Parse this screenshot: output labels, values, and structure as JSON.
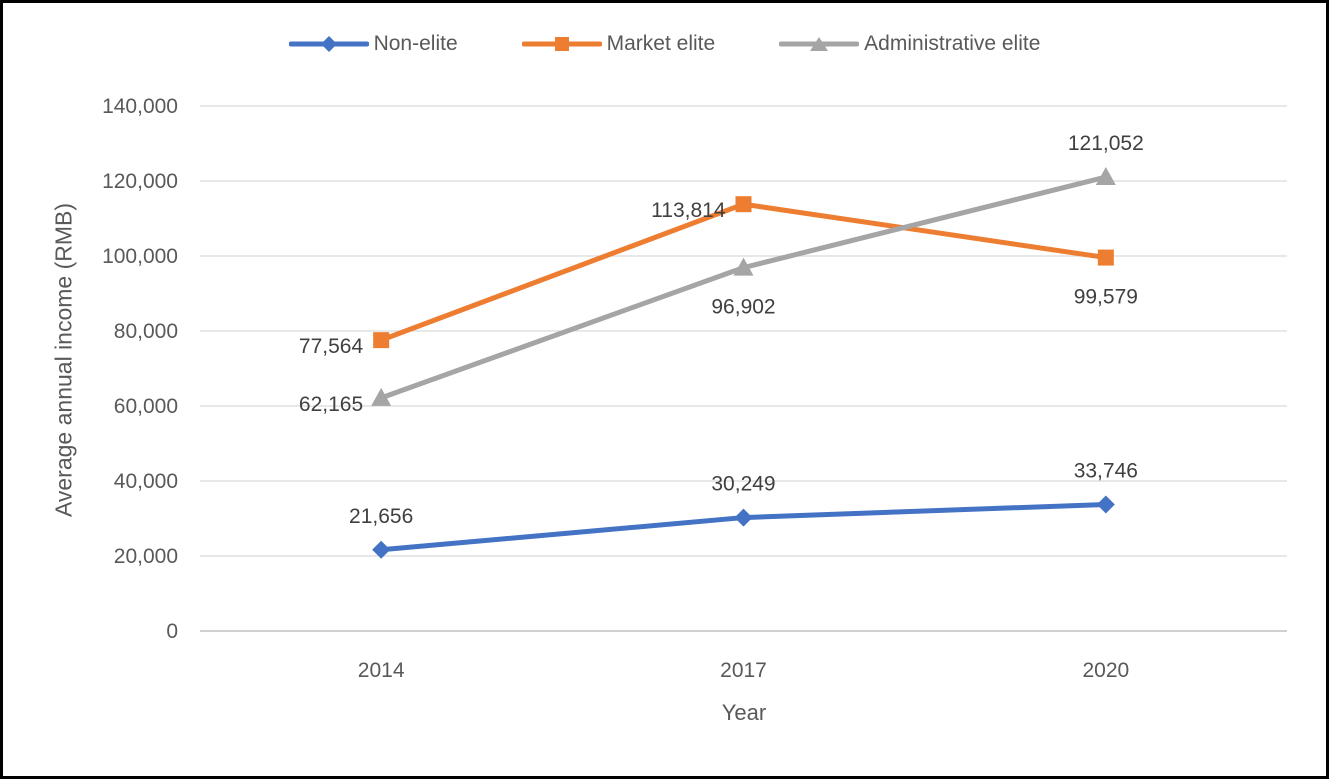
{
  "chart_data": {
    "type": "line",
    "title": "",
    "xlabel": "Year",
    "ylabel": "Average annual income (RMB)",
    "categories": [
      "2014",
      "2017",
      "2020"
    ],
    "ylim": [
      0,
      140000
    ],
    "y_tick_step": 20000,
    "y_tick_labels": [
      "140,000",
      "120,000",
      "100,000",
      "80,000",
      "60,000",
      "40,000",
      "20,000",
      "0"
    ],
    "grid": true,
    "legend_position": "top",
    "colors": {
      "grid": "#D9D9D9",
      "axis_line": "#D0D0D0",
      "tick_text": "#595959",
      "data_label_text": "#404040",
      "frame_border": "#000000"
    },
    "series": [
      {
        "name": "Non-elite",
        "color": "#4472C4",
        "marker": "diamond",
        "values": [
          21656,
          30249,
          33746
        ],
        "data_labels": [
          "21,656",
          "30,249",
          "33,746"
        ],
        "label_positions": [
          "above",
          "above",
          "above"
        ]
      },
      {
        "name": "Market elite",
        "color": "#ED7D31",
        "marker": "square",
        "values": [
          77564,
          113814,
          99579
        ],
        "data_labels": [
          "77,564",
          "113,814",
          "99,579"
        ],
        "label_positions": [
          "left",
          "left",
          "below"
        ]
      },
      {
        "name": "Administrative elite",
        "color": "#A5A5A5",
        "marker": "triangle",
        "values": [
          62165,
          96902,
          121052
        ],
        "data_labels": [
          "62,165",
          "96,902",
          "121,052"
        ],
        "label_positions": [
          "left",
          "below",
          "above"
        ]
      }
    ]
  }
}
